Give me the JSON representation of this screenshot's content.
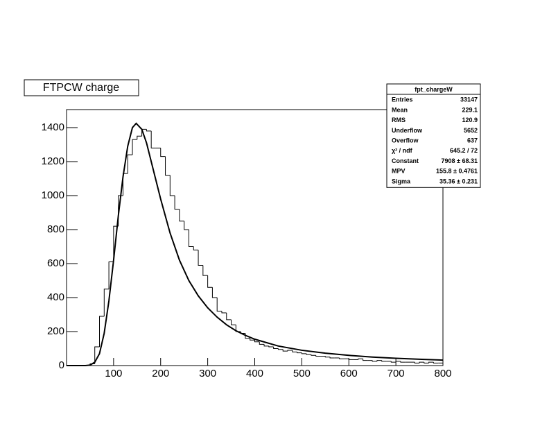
{
  "chart_data": {
    "type": "histogram",
    "title": "FTPCW charge",
    "bins": [
      0,
      10,
      20,
      30,
      40,
      50,
      60,
      70,
      80,
      90,
      100,
      110,
      120,
      130,
      140,
      150,
      160,
      170,
      180,
      190,
      200,
      210,
      220,
      230,
      240,
      250,
      260,
      270,
      280,
      290,
      300,
      310,
      320,
      330,
      340,
      350,
      360,
      370,
      380,
      390,
      400,
      410,
      420,
      430,
      440,
      450,
      460,
      470,
      480,
      490,
      500,
      510,
      520,
      530,
      540,
      550,
      560,
      570,
      580,
      590,
      600,
      610,
      620,
      630,
      640,
      650,
      660,
      670,
      680,
      690,
      700,
      710,
      720,
      730,
      740,
      750,
      760,
      770,
      780,
      790,
      800
    ],
    "values": [
      0,
      0,
      0,
      0,
      0,
      10,
      110,
      290,
      450,
      610,
      820,
      1000,
      1130,
      1240,
      1330,
      1350,
      1390,
      1380,
      1280,
      1280,
      1230,
      1120,
      1000,
      920,
      850,
      800,
      700,
      680,
      590,
      530,
      460,
      400,
      320,
      310,
      270,
      240,
      200,
      190,
      160,
      150,
      140,
      125,
      115,
      110,
      100,
      95,
      85,
      90,
      80,
      75,
      70,
      65,
      60,
      55,
      55,
      50,
      45,
      45,
      40,
      40,
      35,
      35,
      40,
      30,
      30,
      25,
      30,
      25,
      25,
      20,
      25,
      20,
      20,
      20,
      15,
      20,
      15,
      20,
      15,
      15
    ],
    "color": "#000000",
    "fit": {
      "x": [
        0,
        20,
        40,
        50,
        60,
        70,
        80,
        90,
        100,
        110,
        120,
        130,
        140,
        148,
        160,
        170,
        180,
        190,
        200,
        220,
        240,
        260,
        280,
        300,
        320,
        340,
        360,
        380,
        400,
        450,
        500,
        550,
        600,
        650,
        700,
        750,
        800
      ],
      "values": [
        0,
        0,
        0,
        3,
        20,
        70,
        190,
        380,
        620,
        880,
        1110,
        1290,
        1400,
        1425,
        1390,
        1310,
        1200,
        1090,
        980,
        780,
        620,
        500,
        410,
        340,
        285,
        240,
        205,
        178,
        155,
        115,
        90,
        73,
        60,
        50,
        43,
        37,
        32
      ]
    },
    "xlim": [
      0,
      800
    ],
    "xticks": [
      100,
      200,
      300,
      400,
      500,
      600,
      700,
      800
    ],
    "ylim": [
      0,
      1506
    ],
    "yticks": [
      0,
      200,
      400,
      600,
      800,
      1000,
      1200,
      1400
    ],
    "stats": {
      "title": "fpt_chargeW",
      "rows": [
        {
          "label": "Entries",
          "value": 33147
        },
        {
          "label": "Mean",
          "value": 229.1
        },
        {
          "label": "RMS",
          "value": 120.9
        },
        {
          "label": "Underflow",
          "value": 5652
        },
        {
          "label": "Overflow",
          "value": 637
        },
        {
          "label": "χ² / ndf",
          "value": "645.2 / 72"
        },
        {
          "label": "Constant",
          "value": "7908 ± 68.31"
        },
        {
          "label": "MPV",
          "value": "155.8 ± 0.4761"
        },
        {
          "label": "Sigma",
          "value": "35.36 ± 0.231"
        }
      ]
    }
  }
}
